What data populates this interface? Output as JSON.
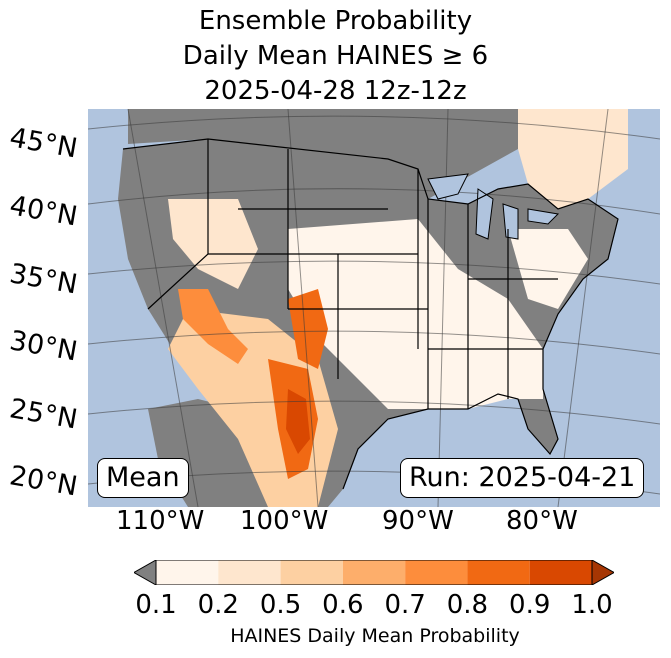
{
  "title": {
    "line1": "Ensemble Probability",
    "line2": "Daily Mean HAINES ≥ 6",
    "line3": "2025-04-28 12z-12z"
  },
  "map": {
    "ocean_color": "#b0c4de",
    "land_low_color": "#808080",
    "lat_labels": [
      "45°N",
      "40°N",
      "35°N",
      "30°N",
      "25°N",
      "20°N"
    ],
    "lon_labels": [
      "110°W",
      "100°W",
      "90°W",
      "80°W"
    ]
  },
  "boxes": {
    "left": "Mean",
    "right": "Run: 2025-04-21"
  },
  "colorbar": {
    "label": "HAINES Daily Mean Probability",
    "ticks": [
      "0.1",
      "0.2",
      "0.5",
      "0.6",
      "0.7",
      "0.8",
      "0.9",
      "1.0"
    ],
    "colors": [
      "#fff5eb",
      "#fee6ce",
      "#fdd0a2",
      "#fdae6b",
      "#fd8d3c",
      "#f16913",
      "#d94801",
      "#a63603"
    ],
    "under_color": "#808080"
  }
}
